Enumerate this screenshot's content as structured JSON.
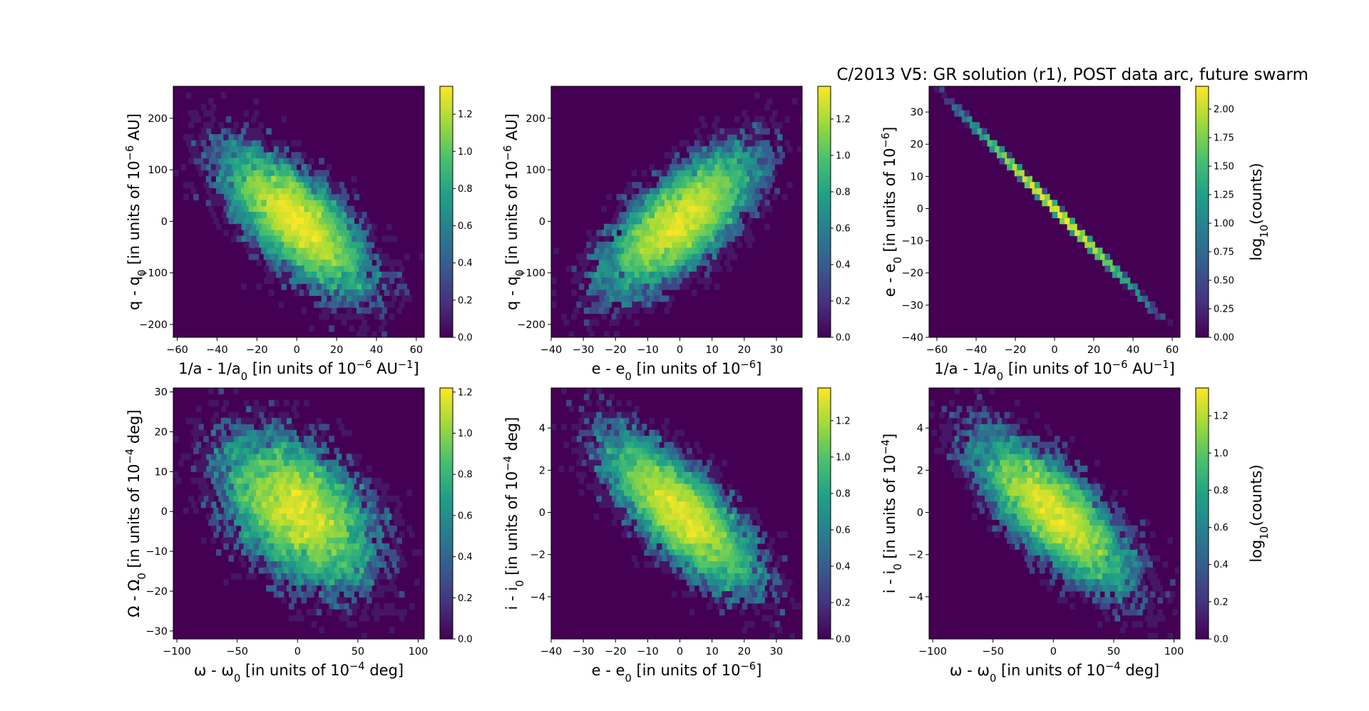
{
  "figure": {
    "title": "C/2013 V5: GR solution (r1),  POST data arc, future swarm",
    "colormap": "viridis",
    "colormap_stops": [
      "#440154",
      "#46327e",
      "#365c8d",
      "#277f8e",
      "#1fa187",
      "#4ac16d",
      "#a0da39",
      "#fde725"
    ]
  },
  "chart_data": [
    {
      "type": "heatmap",
      "xlabel_html": "1/a - 1/a<tspan baseline-shift=\"sub\" font-size=\"70%\">0</tspan> [in units of 10<tspan baseline-shift=\"super\" font-size=\"70%\">−6</tspan> AU<tspan baseline-shift=\"super\" font-size=\"70%\">−1</tspan>]",
      "ylabel_html": "q - q<tspan baseline-shift=\"sub\" font-size=\"70%\">0</tspan> [in units of 10<tspan baseline-shift=\"super\" font-size=\"70%\">−6</tspan> AU]",
      "xlim": [
        -62,
        64
      ],
      "ylim": [
        -225,
        262
      ],
      "xticks": [
        -60,
        -40,
        -20,
        0,
        20,
        40,
        60
      ],
      "xtick_labels": [
        "−60",
        "−40",
        "−20",
        "0",
        "20",
        "40",
        "60"
      ],
      "yticks": [
        -200,
        -100,
        0,
        100,
        200
      ],
      "ytick_labels": [
        "−200",
        "−100",
        "0",
        "100",
        "200"
      ],
      "distribution": {
        "center": [
          0,
          0
        ],
        "std": [
          17,
          65
        ],
        "correlation": -0.7,
        "points": 10000
      },
      "colorbar": {
        "range": [
          0,
          1.35
        ],
        "ticks": [
          0.0,
          0.2,
          0.4,
          0.6,
          0.8,
          1.0,
          1.2
        ],
        "tick_labels": [
          "0.0",
          "0.2",
          "0.4",
          "0.6",
          "0.8",
          "1.0",
          "1.2"
        ],
        "label_html": ""
      }
    },
    {
      "type": "heatmap",
      "xlabel_html": "e - e<tspan baseline-shift=\"sub\" font-size=\"70%\">0</tspan> [in units of 10<tspan baseline-shift=\"super\" font-size=\"70%\">−6</tspan>]",
      "ylabel_html": "q - q<tspan baseline-shift=\"sub\" font-size=\"70%\">0</tspan> [in units of 10<tspan baseline-shift=\"super\" font-size=\"70%\">−6</tspan> AU]",
      "xlim": [
        -40,
        38
      ],
      "ylim": [
        -225,
        262
      ],
      "xticks": [
        -40,
        -30,
        -20,
        -10,
        0,
        10,
        20,
        30
      ],
      "xtick_labels": [
        "−40",
        "−30",
        "−20",
        "−10",
        "0",
        "10",
        "20",
        "30"
      ],
      "yticks": [
        -200,
        -100,
        0,
        100,
        200
      ],
      "ytick_labels": [
        "−200",
        "−100",
        "0",
        "100",
        "200"
      ],
      "distribution": {
        "center": [
          0,
          0
        ],
        "std": [
          11,
          65
        ],
        "correlation": 0.7,
        "points": 10000
      },
      "colorbar": {
        "range": [
          0,
          1.38
        ],
        "ticks": [
          0.0,
          0.2,
          0.4,
          0.6,
          0.8,
          1.0,
          1.2
        ],
        "tick_labels": [
          "0.0",
          "0.2",
          "0.4",
          "0.6",
          "0.8",
          "1.0",
          "1.2"
        ],
        "label_html": ""
      }
    },
    {
      "type": "heatmap",
      "xlabel_html": "1/a - 1/a<tspan baseline-shift=\"sub\" font-size=\"70%\">0</tspan> [in units of 10<tspan baseline-shift=\"super\" font-size=\"70%\">−6</tspan> AU<tspan baseline-shift=\"super\" font-size=\"70%\">−1</tspan>]",
      "ylabel_html": "e - e<tspan baseline-shift=\"sub\" font-size=\"70%\">0</tspan> [in units of 10<tspan baseline-shift=\"super\" font-size=\"70%\">−6</tspan>]",
      "xlim": [
        -64,
        64
      ],
      "ylim": [
        -40,
        38
      ],
      "xticks": [
        -60,
        -40,
        -20,
        0,
        20,
        40,
        60
      ],
      "xtick_labels": [
        "−60",
        "−40",
        "−20",
        "0",
        "20",
        "40",
        "60"
      ],
      "yticks": [
        -40,
        -30,
        -20,
        -10,
        0,
        10,
        20,
        30
      ],
      "ytick_labels": [
        "−40",
        "−30",
        "−20",
        "−10",
        "0",
        "10",
        "20",
        "30"
      ],
      "distribution": {
        "center": [
          0,
          0
        ],
        "std": [
          17,
          10.6
        ],
        "correlation": -0.9995,
        "points": 10000
      },
      "colorbar": {
        "range": [
          0,
          2.2
        ],
        "ticks": [
          0.0,
          0.25,
          0.5,
          0.75,
          1.0,
          1.25,
          1.5,
          1.75,
          2.0
        ],
        "tick_labels": [
          "0.00",
          "0.25",
          "0.50",
          "0.75",
          "1.00",
          "1.25",
          "1.50",
          "1.75",
          "2.00"
        ],
        "label_html": "log<tspan baseline-shift=\"sub\" font-size=\"70%\">10</tspan>(counts)"
      }
    },
    {
      "type": "heatmap",
      "xlabel_html": "ω - ω<tspan baseline-shift=\"sub\" font-size=\"70%\">0</tspan> [in units of 10<tspan baseline-shift=\"super\" font-size=\"70%\">−4</tspan> deg]",
      "ylabel_html": "Ω - Ω<tspan baseline-shift=\"sub\" font-size=\"70%\">0</tspan> [in units of 10<tspan baseline-shift=\"super\" font-size=\"70%\">−4</tspan> deg]",
      "xlim": [
        -103,
        105
      ],
      "ylim": [
        -32,
        31
      ],
      "xticks": [
        -100,
        -50,
        0,
        50,
        100
      ],
      "xtick_labels": [
        "−100",
        "−50",
        "0",
        "50",
        "100"
      ],
      "yticks": [
        -30,
        -20,
        -10,
        0,
        10,
        20,
        30
      ],
      "ytick_labels": [
        "−30",
        "−20",
        "−10",
        "0",
        "10",
        "20",
        "30"
      ],
      "distribution": {
        "center": [
          0,
          0
        ],
        "std": [
          30,
          9
        ],
        "correlation": -0.45,
        "points": 10000
      },
      "colorbar": {
        "range": [
          0,
          1.22
        ],
        "ticks": [
          0.0,
          0.2,
          0.4,
          0.6,
          0.8,
          1.0,
          1.2
        ],
        "tick_labels": [
          "0.0",
          "0.2",
          "0.4",
          "0.6",
          "0.8",
          "1.0",
          "1.2"
        ],
        "label_html": ""
      }
    },
    {
      "type": "heatmap",
      "xlabel_html": "e - e<tspan baseline-shift=\"sub\" font-size=\"70%\">0</tspan> [in units of 10<tspan baseline-shift=\"super\" font-size=\"70%\">−6</tspan>]",
      "ylabel_html": "i - i<tspan baseline-shift=\"sub\" font-size=\"70%\">0</tspan> [in units of 10<tspan baseline-shift=\"super\" font-size=\"70%\">−4</tspan> deg]",
      "xlim": [
        -40,
        38
      ],
      "ylim": [
        -6,
        5.9
      ],
      "xticks": [
        -40,
        -30,
        -20,
        -10,
        0,
        10,
        20,
        30
      ],
      "xtick_labels": [
        "−40",
        "−30",
        "−20",
        "−10",
        "0",
        "10",
        "20",
        "30"
      ],
      "yticks": [
        -4,
        -2,
        0,
        2,
        4
      ],
      "ytick_labels": [
        "−4",
        "−2",
        "0",
        "2",
        "4"
      ],
      "distribution": {
        "center": [
          0,
          0
        ],
        "std": [
          11,
          1.7
        ],
        "correlation": -0.75,
        "points": 10000
      },
      "colorbar": {
        "range": [
          0,
          1.38
        ],
        "ticks": [
          0.0,
          0.2,
          0.4,
          0.6,
          0.8,
          1.0,
          1.2
        ],
        "tick_labels": [
          "0.0",
          "0.2",
          "0.4",
          "0.6",
          "0.8",
          "1.0",
          "1.2"
        ],
        "label_html": ""
      }
    },
    {
      "type": "heatmap",
      "xlabel_html": "ω - ω<tspan baseline-shift=\"sub\" font-size=\"70%\">0</tspan> [in units of 10<tspan baseline-shift=\"super\" font-size=\"70%\">−4</tspan> deg]",
      "ylabel_html": "i - i<tspan baseline-shift=\"sub\" font-size=\"70%\">0</tspan> [in units of 10<tspan baseline-shift=\"super\" font-size=\"70%\">−4</tspan>]",
      "xlim": [
        -103,
        105
      ],
      "ylim": [
        -6,
        5.9
      ],
      "xticks": [
        -100,
        -50,
        0,
        50,
        100
      ],
      "xtick_labels": [
        "−100",
        "−50",
        "0",
        "50",
        "100"
      ],
      "yticks": [
        -4,
        -2,
        0,
        2,
        4
      ],
      "ytick_labels": [
        "−4",
        "−2",
        "0",
        "2",
        "4"
      ],
      "distribution": {
        "center": [
          0,
          0
        ],
        "std": [
          30,
          1.7
        ],
        "correlation": -0.75,
        "points": 10000
      },
      "colorbar": {
        "range": [
          0,
          1.35
        ],
        "ticks": [
          0.0,
          0.2,
          0.4,
          0.6,
          0.8,
          1.0,
          1.2
        ],
        "tick_labels": [
          "0.0",
          "0.2",
          "0.4",
          "0.6",
          "0.8",
          "1.0",
          "1.2"
        ],
        "label_html": "log<tspan baseline-shift=\"sub\" font-size=\"70%\">10</tspan>(counts)"
      }
    }
  ]
}
